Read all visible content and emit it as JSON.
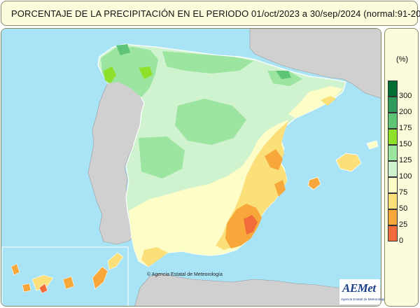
{
  "header": {
    "title": "PORCENTAJE DE LA PRECIPITACIÓN EN EL PERIODO   01/oct/2023 a 30/sep/2024 (normal:91-20)"
  },
  "legend": {
    "unit": "(%)",
    "items": [
      {
        "label": "300",
        "color": "#006e33"
      },
      {
        "label": "200",
        "color": "#2e9b5a"
      },
      {
        "label": "175",
        "color": "#5ec476"
      },
      {
        "label": "150",
        "color": "#8fe02a"
      },
      {
        "label": "125",
        "color": "#9be5a0"
      },
      {
        "label": "100",
        "color": "#cff2cf"
      },
      {
        "label": "75",
        "color": "#fdfdc8"
      },
      {
        "label": "50",
        "color": "#fbe07a"
      },
      {
        "label": "25",
        "color": "#f8a83a"
      },
      {
        "label": "0",
        "color": "#f26b3a"
      }
    ],
    "bottom_color": "#e84a28"
  },
  "map": {
    "sea_color": "#a9e4f6",
    "land_foreign_color": "#d0d0d0",
    "credit": "© Agencia Estatal de Meteorología"
  },
  "logo": {
    "name": "AEMet",
    "subtitle": "Agencia Estatal de Meteorología"
  }
}
